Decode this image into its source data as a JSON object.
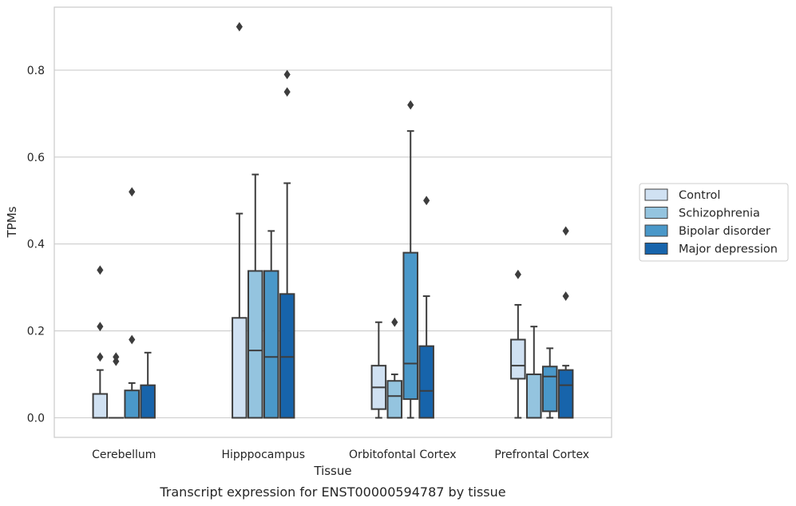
{
  "chart_data": {
    "type": "box",
    "xlabel": "Tissue",
    "ylabel": "TPMs",
    "caption": "Transcript expression for ENST00000594787 by tissue",
    "categories": [
      "Cerebellum",
      "Hipppocampus",
      "Orbitofontal Cortex",
      "Prefrontal Cortex"
    ],
    "ylim": [
      -0.045,
      0.945
    ],
    "yticks": [
      0.0,
      0.2,
      0.4,
      0.6,
      0.8
    ],
    "ytick_labels": [
      "0.0",
      "0.2",
      "0.4",
      "0.6",
      "0.8"
    ],
    "grid": "horizontal",
    "legend_position": "right",
    "series": [
      {
        "name": "Control",
        "color": "#d0e1f2",
        "boxes": [
          {
            "q1": 0.0,
            "median": 0.0,
            "q3": 0.055,
            "whisker_low": 0.0,
            "whisker_high": 0.11,
            "outliers": [
              0.14,
              0.21,
              0.34
            ]
          },
          {
            "q1": 0.0,
            "median": 0.0,
            "q3": 0.23,
            "whisker_low": 0.0,
            "whisker_high": 0.47,
            "outliers": [
              0.9
            ]
          },
          {
            "q1": 0.02,
            "median": 0.07,
            "q3": 0.12,
            "whisker_low": 0.0,
            "whisker_high": 0.22,
            "outliers": []
          },
          {
            "q1": 0.09,
            "median": 0.12,
            "q3": 0.18,
            "whisker_low": 0.0,
            "whisker_high": 0.26,
            "outliers": [
              0.33
            ]
          }
        ]
      },
      {
        "name": "Schizophrenia",
        "color": "#94c4df",
        "boxes": [
          {
            "q1": 0.0,
            "median": 0.0,
            "q3": 0.0,
            "whisker_low": 0.0,
            "whisker_high": 0.0,
            "outliers": [
              0.13,
              0.14
            ]
          },
          {
            "q1": 0.0,
            "median": 0.155,
            "q3": 0.338,
            "whisker_low": 0.0,
            "whisker_high": 0.56,
            "outliers": []
          },
          {
            "q1": 0.0,
            "median": 0.05,
            "q3": 0.085,
            "whisker_low": 0.0,
            "whisker_high": 0.1,
            "outliers": [
              0.22
            ]
          },
          {
            "q1": 0.0,
            "median": 0.1,
            "q3": 0.1,
            "whisker_low": 0.0,
            "whisker_high": 0.21,
            "outliers": []
          }
        ]
      },
      {
        "name": "Bipolar disorder",
        "color": "#4a98c9",
        "boxes": [
          {
            "q1": 0.0,
            "median": 0.0,
            "q3": 0.063,
            "whisker_low": 0.0,
            "whisker_high": 0.08,
            "outliers": [
              0.18,
              0.52
            ]
          },
          {
            "q1": 0.0,
            "median": 0.14,
            "q3": 0.338,
            "whisker_low": 0.0,
            "whisker_high": 0.43,
            "outliers": []
          },
          {
            "q1": 0.043,
            "median": 0.125,
            "q3": 0.38,
            "whisker_low": 0.0,
            "whisker_high": 0.66,
            "outliers": [
              0.72
            ]
          },
          {
            "q1": 0.015,
            "median": 0.095,
            "q3": 0.118,
            "whisker_low": 0.0,
            "whisker_high": 0.16,
            "outliers": []
          }
        ]
      },
      {
        "name": "Major depression",
        "color": "#1764ab",
        "boxes": [
          {
            "q1": 0.0,
            "median": 0.0,
            "q3": 0.075,
            "whisker_low": 0.0,
            "whisker_high": 0.15,
            "outliers": []
          },
          {
            "q1": 0.0,
            "median": 0.14,
            "q3": 0.285,
            "whisker_low": 0.0,
            "whisker_high": 0.54,
            "outliers": [
              0.75,
              0.79
            ]
          },
          {
            "q1": 0.0,
            "median": 0.062,
            "q3": 0.165,
            "whisker_low": 0.0,
            "whisker_high": 0.28,
            "outliers": [
              0.5
            ]
          },
          {
            "q1": 0.0,
            "median": 0.075,
            "q3": 0.11,
            "whisker_low": 0.0,
            "whisker_high": 0.12,
            "outliers": [
              0.28,
              0.43
            ]
          }
        ]
      }
    ]
  }
}
